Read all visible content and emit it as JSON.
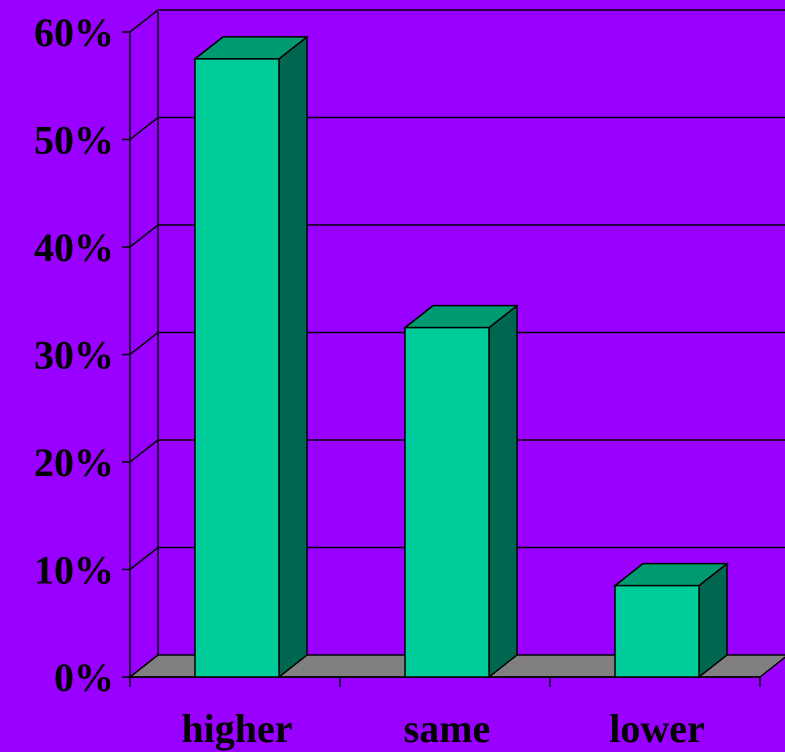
{
  "chart_data": {
    "type": "bar",
    "categories": [
      "higher",
      "same",
      "lower"
    ],
    "values": [
      0.575,
      0.325,
      0.085
    ],
    "yticks": [
      "0%",
      "10%",
      "20%",
      "30%",
      "40%",
      "50%",
      "60%"
    ],
    "ylim": [
      0,
      0.6
    ],
    "grid": true,
    "title": "",
    "xlabel": "",
    "ylabel": ""
  },
  "colors": {
    "background": "#9900ff",
    "bar_front": "#00cc99",
    "bar_side": "#006650",
    "bar_top": "#009a70",
    "floor": "#808080",
    "lines": "#000000"
  }
}
